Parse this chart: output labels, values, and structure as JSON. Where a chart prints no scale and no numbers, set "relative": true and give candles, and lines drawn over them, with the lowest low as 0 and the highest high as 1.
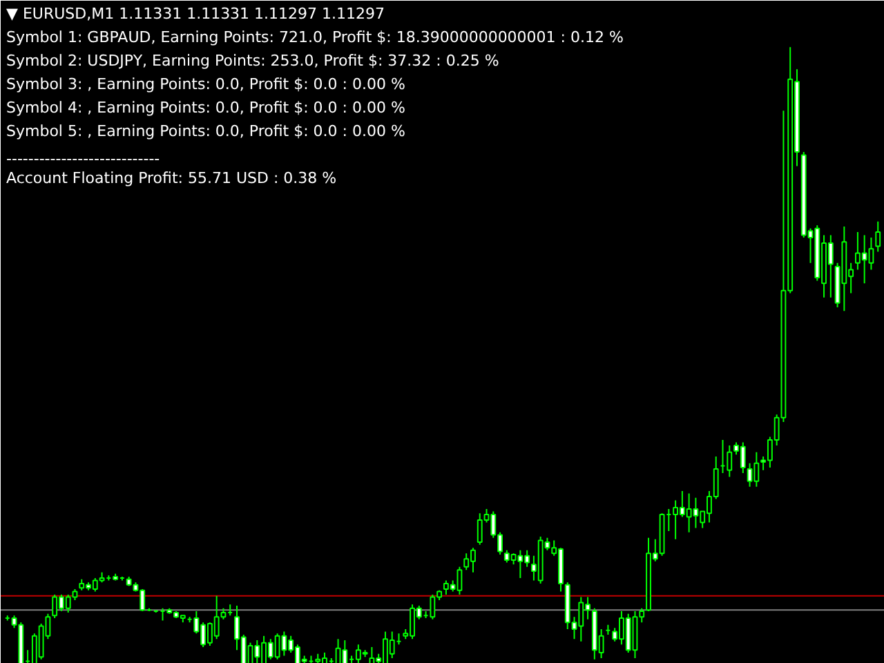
{
  "chart_data": {
    "type": "candlestick",
    "relative": true,
    "title": "▼ EURUSD,M1  1.11331 1.11331 1.11297 1.11297",
    "annotations": [
      "Symbol 1: GBPAUD, Earning Points: 721.0, Profit $: 18.39000000000001 : 0.12 %",
      "Symbol 2: USDJPY, Earning Points: 253.0, Profit $: 37.32 : 0.25 %",
      "Symbol 3: , Earning Points: 0.0, Profit $: 0.0 : 0.00 %",
      "Symbol 4: , Earning Points: 0.0, Profit $: 0.0 : 0.00 %",
      "Symbol 5: , Earning Points: 0.0, Profit $: 0.0 : 0.00 %",
      "----------------------------",
      "Account Floating Profit: 55.71 USD : 0.38 %"
    ],
    "color": "#00ff00",
    "ref_lines": [
      {
        "axis": "y",
        "value": 0.11,
        "label": null,
        "color": "#c00000"
      },
      {
        "axis": "y",
        "value": 0.087,
        "label": null,
        "color": "#808080"
      }
    ],
    "categories": [
      null,
      null,
      null,
      null,
      null,
      null,
      null,
      null,
      null,
      null,
      null,
      null,
      null,
      null,
      null,
      null,
      null,
      null,
      null,
      null,
      null,
      null,
      null,
      null,
      null,
      null,
      null,
      null,
      null,
      null,
      null,
      null,
      null,
      null,
      null,
      null,
      null,
      null,
      null,
      null,
      null,
      null,
      null,
      null,
      null,
      null,
      null,
      null,
      null,
      null,
      null,
      null,
      null,
      null,
      null,
      null,
      null,
      null,
      null,
      null,
      null,
      null,
      null,
      null,
      null,
      null,
      null,
      null,
      null,
      null,
      null,
      null,
      null,
      null,
      null,
      null,
      null,
      null,
      null,
      null,
      null,
      null,
      null,
      null,
      null,
      null,
      null,
      null,
      null,
      null,
      null,
      null,
      null,
      null,
      null,
      null,
      null,
      null,
      null,
      null,
      null,
      null,
      null,
      null,
      null,
      null,
      null,
      null,
      null,
      null,
      null,
      null,
      null,
      null,
      null,
      null,
      null,
      null,
      null,
      null,
      null,
      null,
      null,
      null,
      null,
      null,
      null,
      null,
      null,
      null
    ],
    "ohlc": [
      [
        0.074,
        0.078,
        0.07,
        0.074
      ],
      [
        0.074,
        0.078,
        0.058,
        0.063
      ],
      [
        0.063,
        0.067,
        0,
        0
      ],
      [
        0.004,
        0.022,
        0,
        0.004
      ],
      [
        0,
        0.049,
        0,
        0.045
      ],
      [
        0.011,
        0.065,
        0.007,
        0.061
      ],
      [
        0.045,
        0.081,
        0.04,
        0.076
      ],
      [
        0.078,
        0.112,
        0.074,
        0.108
      ],
      [
        0.108,
        0.112,
        0.085,
        0.09
      ],
      [
        0.09,
        0.112,
        0.083,
        0.108
      ],
      [
        0.108,
        0.121,
        0.103,
        0.117
      ],
      [
        0.123,
        0.137,
        0.119,
        0.13
      ],
      [
        0.128,
        0.132,
        0.119,
        0.123
      ],
      [
        0.121,
        0.139,
        0.117,
        0.135
      ],
      [
        0.135,
        0.148,
        0.132,
        0.139
      ],
      [
        0.139,
        0.143,
        0.135,
        0.139
      ],
      [
        0.141,
        0.146,
        0.135,
        0.137
      ],
      [
        0.139,
        0.141,
        0.135,
        0.139
      ],
      [
        0.137,
        0.141,
        0.126,
        0.128
      ],
      [
        0.128,
        0.132,
        0.117,
        0.119
      ],
      [
        0.119,
        0.121,
        0.085,
        0.087
      ],
      [
        0.087,
        0.09,
        0.085,
        0.087
      ],
      [
        0.085,
        0.087,
        0.083,
        0.085
      ],
      [
        0.085,
        0.09,
        0.07,
        0.085
      ],
      [
        0.087,
        0.09,
        0.081,
        0.083
      ],
      [
        0.083,
        0.085,
        0.074,
        0.076
      ],
      [
        0.074,
        0.078,
        0.067,
        0.078
      ],
      [
        0.072,
        0.076,
        0.067,
        0.072
      ],
      [
        0.074,
        0.085,
        0.049,
        0.052
      ],
      [
        0.063,
        0.067,
        0.027,
        0.031
      ],
      [
        0.034,
        0.067,
        0.029,
        0.065
      ],
      [
        0.045,
        0.11,
        0.04,
        0.076
      ],
      [
        0.076,
        0.09,
        0.072,
        0.083
      ],
      [
        0.083,
        0.096,
        0.078,
        0.083
      ],
      [
        0.076,
        0.094,
        0.022,
        0.04
      ],
      [
        0.043,
        0.047,
        0,
        0
      ],
      [
        0,
        0.034,
        0,
        0.029
      ],
      [
        0.029,
        0.038,
        0,
        0.011
      ],
      [
        0,
        0.045,
        0,
        0.034
      ],
      [
        0.034,
        0.04,
        0.007,
        0.011
      ],
      [
        0.011,
        0.049,
        0.007,
        0.045
      ],
      [
        0.045,
        0.052,
        0.013,
        0.022
      ],
      [
        0.038,
        0.045,
        0.018,
        0.022
      ],
      [
        0.027,
        0.031,
        0,
        0
      ],
      [
        0.007,
        0.013,
        0,
        0.004
      ],
      [
        0.004,
        0.013,
        0,
        0.004
      ],
      [
        0.004,
        0.016,
        0,
        0.007
      ],
      [
        0,
        0.018,
        0,
        0.009
      ],
      [
        0.004,
        0.009,
        0,
        0.004
      ],
      [
        0,
        0.04,
        0,
        0.025
      ],
      [
        0.022,
        0.038,
        0,
        0
      ],
      [
        0.007,
        0.013,
        0,
        0.007
      ],
      [
        0.007,
        0.031,
        0,
        0.022
      ],
      [
        0.018,
        0.022,
        0.011,
        0.016
      ],
      [
        0,
        0.027,
        0,
        0.009
      ],
      [
        0.009,
        0.016,
        0,
        0.004
      ],
      [
        0,
        0.052,
        0,
        0.04
      ],
      [
        0.016,
        0.052,
        0.009,
        0.038
      ],
      [
        0.036,
        0.049,
        0.031,
        0.036
      ],
      [
        0.045,
        0.056,
        0.04,
        0.049
      ],
      [
        0.045,
        0.096,
        0.04,
        0.09
      ],
      [
        0.09,
        0.094,
        0.072,
        0.076
      ],
      [
        0.078,
        0.085,
        0.074,
        0.078
      ],
      [
        0.076,
        0.112,
        0.072,
        0.108
      ],
      [
        0.108,
        0.119,
        0.103,
        0.117
      ],
      [
        0.121,
        0.135,
        0.112,
        0.13
      ],
      [
        0.128,
        0.135,
        0.117,
        0.121
      ],
      [
        0.119,
        0.157,
        0.112,
        0.152
      ],
      [
        0.157,
        0.179,
        0.152,
        0.17
      ],
      [
        0.166,
        0.188,
        0.148,
        0.184
      ],
      [
        0.197,
        0.244,
        0.193,
        0.233
      ],
      [
        0.233,
        0.251,
        0.229,
        0.242
      ],
      [
        0.242,
        0.247,
        0.204,
        0.209
      ],
      [
        0.209,
        0.213,
        0.177,
        0.182
      ],
      [
        0.179,
        0.184,
        0.164,
        0.168
      ],
      [
        0.168,
        0.179,
        0.161,
        0.177
      ],
      [
        0.175,
        0.184,
        0.139,
        0.166
      ],
      [
        0.175,
        0.184,
        0.157,
        0.164
      ],
      [
        0.161,
        0.175,
        0.135,
        0.15
      ],
      [
        0.135,
        0.206,
        0.13,
        0.2
      ],
      [
        0.197,
        0.204,
        0.184,
        0.188
      ],
      [
        0.179,
        0.2,
        0.175,
        0.188
      ],
      [
        0.186,
        0.188,
        0.117,
        0.13
      ],
      [
        0.128,
        0.132,
        0.056,
        0.067
      ],
      [
        0.067,
        0.076,
        0.04,
        0.056
      ],
      [
        0.061,
        0.108,
        0.036,
        0.099
      ],
      [
        0.096,
        0.108,
        0.072,
        0.087
      ],
      [
        0.085,
        0.09,
        0.007,
        0.022
      ],
      [
        0.018,
        0.056,
        0.009,
        0.045
      ],
      [
        0.054,
        0.063,
        0.047,
        0.054
      ],
      [
        0.052,
        0.058,
        0.036,
        0.04
      ],
      [
        0.04,
        0.085,
        0.031,
        0.074
      ],
      [
        0.074,
        0.081,
        0.018,
        0.022
      ],
      [
        0.022,
        0.085,
        0.009,
        0.076
      ],
      [
        0.076,
        0.09,
        0.067,
        0.085
      ],
      [
        0.087,
        0.204,
        0.085,
        0.179
      ],
      [
        0.179,
        0.202,
        0.166,
        0.17
      ],
      [
        0.179,
        0.244,
        0.175,
        0.242
      ],
      [
        0.242,
        0.251,
        0.215,
        0.242
      ],
      [
        0.242,
        0.265,
        0.202,
        0.253
      ],
      [
        0.253,
        0.28,
        0.238,
        0.242
      ],
      [
        0.238,
        0.276,
        0.213,
        0.251
      ],
      [
        0.251,
        0.269,
        0.22,
        0.24
      ],
      [
        0.229,
        0.247,
        0.22,
        0.247
      ],
      [
        0.244,
        0.28,
        0.229,
        0.271
      ],
      [
        0.271,
        0.336,
        0.267,
        0.316
      ],
      [
        0.321,
        0.363,
        0.309,
        0.321
      ],
      [
        0.314,
        0.354,
        0.303,
        0.343
      ],
      [
        0.354,
        0.359,
        0.339,
        0.345
      ],
      [
        0.352,
        0.359,
        0.309,
        0.318
      ],
      [
        0.316,
        0.325,
        0.287,
        0.296
      ],
      [
        0.296,
        0.343,
        0.287,
        0.325
      ],
      [
        0.33,
        0.336,
        0.314,
        0.327
      ],
      [
        0.33,
        0.368,
        0.318,
        0.363
      ],
      [
        0.363,
        0.404,
        0.354,
        0.399
      ],
      [
        0.399,
        0.897,
        0.392,
        0.605
      ],
      [
        0.605,
        1.0,
        0.601,
        0.948
      ],
      [
        0.944,
        0.964,
        0.807,
        0.83
      ],
      [
        0.825,
        0.83,
        0.691,
        0.695
      ],
      [
        0.702,
        0.706,
        0.65,
        0.691
      ],
      [
        0.706,
        0.711,
        0.621,
        0.626
      ],
      [
        0.617,
        0.695,
        0.594,
        0.682
      ],
      [
        0.682,
        0.695,
        0.594,
        0.648
      ],
      [
        0.644,
        0.65,
        0.578,
        0.585
      ],
      [
        0.617,
        0.709,
        0.572,
        0.684
      ],
      [
        0.628,
        0.65,
        0.601,
        0.639
      ],
      [
        0.65,
        0.7,
        0.639,
        0.666
      ],
      [
        0.666,
        0.695,
        0.617,
        0.655
      ],
      [
        0.65,
        0.691,
        0.639,
        0.673
      ],
      [
        0.677,
        0.717,
        0.668,
        0.7
      ]
    ]
  }
}
